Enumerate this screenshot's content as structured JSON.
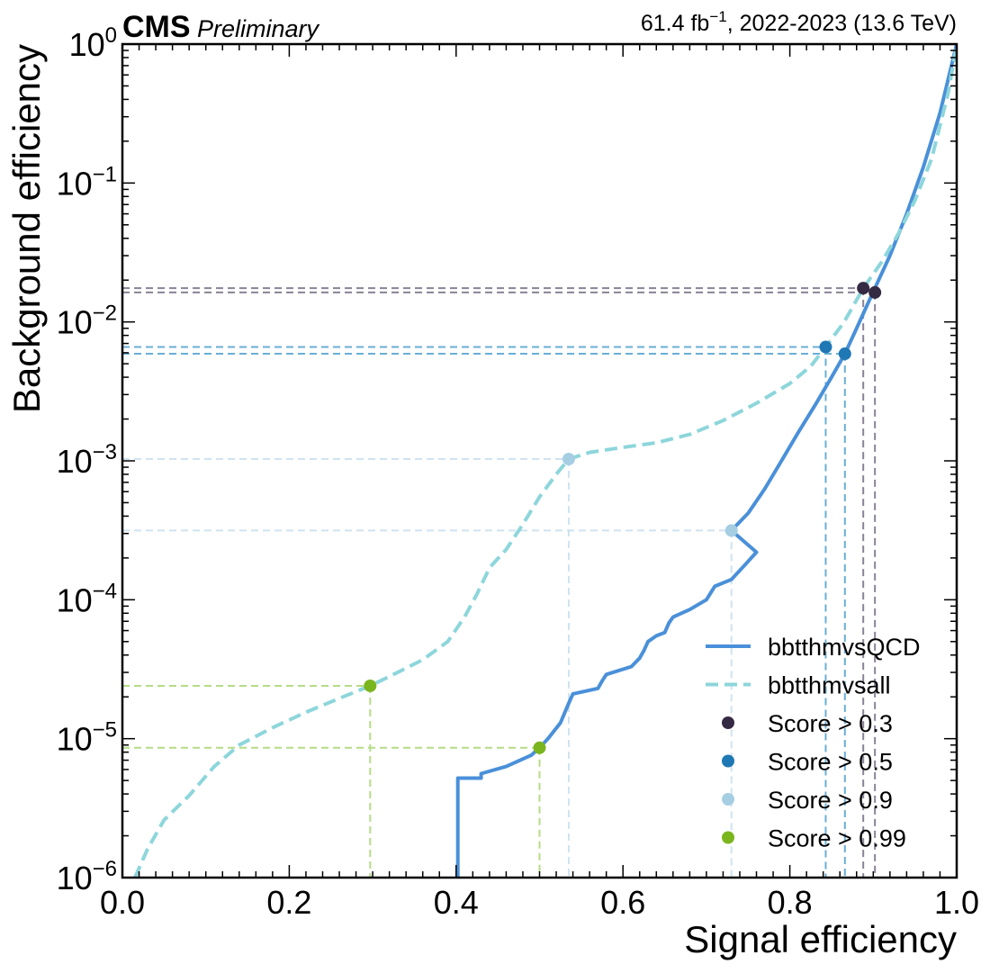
{
  "header": {
    "experiment": "CMS",
    "status": "Preliminary",
    "lumi_text": "61.4 fb",
    "lumi_exp": "−1",
    "lumi_suffix": ", 2022-2023 (13.6 TeV)"
  },
  "chart_data": {
    "type": "line",
    "xlabel": "Signal efficiency",
    "ylabel": "Background efficiency",
    "xlim": [
      0.0,
      1.0
    ],
    "ylim": [
      1e-06,
      1.0
    ],
    "yscale": "log",
    "x_ticks": [
      "0.0",
      "0.2",
      "0.4",
      "0.6",
      "0.8",
      "1.0"
    ],
    "y_ticks": [
      {
        "base": "10",
        "exp": "−6"
      },
      {
        "base": "10",
        "exp": "−5"
      },
      {
        "base": "10",
        "exp": "−4"
      },
      {
        "base": "10",
        "exp": "−3"
      },
      {
        "base": "10",
        "exp": "−2"
      },
      {
        "base": "10",
        "exp": "−1"
      },
      {
        "base": "10",
        "exp": "0"
      }
    ],
    "legend_position": "lower-right",
    "grid": false,
    "series": [
      {
        "name": "bbtthmvsQCD",
        "style": "solid",
        "color": "#4a90d9",
        "points": [
          [
            0.402,
            1e-06
          ],
          [
            0.402,
            5.2e-06
          ],
          [
            0.43,
            5.2e-06
          ],
          [
            0.43,
            5.6e-06
          ],
          [
            0.46,
            6.3e-06
          ],
          [
            0.49,
            7.6e-06
          ],
          [
            0.5,
            8.6e-06
          ],
          [
            0.51,
            1e-05
          ],
          [
            0.525,
            1.3e-05
          ],
          [
            0.535,
            1.8e-05
          ],
          [
            0.54,
            2.1e-05
          ],
          [
            0.57,
            2.3e-05
          ],
          [
            0.575,
            2.6e-05
          ],
          [
            0.58,
            2.9e-05
          ],
          [
            0.61,
            3.3e-05
          ],
          [
            0.62,
            3.8e-05
          ],
          [
            0.625,
            4.3e-05
          ],
          [
            0.63,
            5e-05
          ],
          [
            0.64,
            5.5e-05
          ],
          [
            0.65,
            5.8e-05
          ],
          [
            0.655,
            6.8e-05
          ],
          [
            0.66,
            7.5e-05
          ],
          [
            0.68,
            8.5e-05
          ],
          [
            0.7,
            0.0001
          ],
          [
            0.71,
            0.000125
          ],
          [
            0.73,
            0.00014
          ],
          [
            0.745,
            0.000175
          ],
          [
            0.76,
            0.00022
          ],
          [
            0.73,
            0.000315
          ],
          [
            0.75,
            0.00042
          ],
          [
            0.77,
            0.00063
          ],
          [
            0.79,
            0.001
          ],
          [
            0.81,
            0.0016
          ],
          [
            0.83,
            0.0025
          ],
          [
            0.85,
            0.004
          ],
          [
            0.866,
            0.0059
          ],
          [
            0.88,
            0.009
          ],
          [
            0.9,
            0.0165
          ],
          [
            0.92,
            0.03
          ],
          [
            0.94,
            0.06
          ],
          [
            0.96,
            0.13
          ],
          [
            0.98,
            0.32
          ],
          [
            1.0,
            1.0
          ]
        ]
      },
      {
        "name": "bbtthmvsall",
        "style": "dashed",
        "color": "#8dd6db",
        "points": [
          [
            0.015,
            1e-06
          ],
          [
            0.03,
            1.6e-06
          ],
          [
            0.05,
            2.6e-06
          ],
          [
            0.08,
            3.9e-06
          ],
          [
            0.11,
            6.3e-06
          ],
          [
            0.14,
            9e-06
          ],
          [
            0.18,
            1.2e-05
          ],
          [
            0.22,
            1.55e-05
          ],
          [
            0.26,
            1.95e-05
          ],
          [
            0.297,
            2.4e-05
          ],
          [
            0.33,
            3e-05
          ],
          [
            0.36,
            3.7e-05
          ],
          [
            0.39,
            5e-05
          ],
          [
            0.41,
            7.5e-05
          ],
          [
            0.425,
            0.00011
          ],
          [
            0.44,
            0.00017
          ],
          [
            0.46,
            0.00023
          ],
          [
            0.48,
            0.00035
          ],
          [
            0.5,
            0.00055
          ],
          [
            0.52,
            0.0008
          ],
          [
            0.535,
            0.00103
          ],
          [
            0.56,
            0.00115
          ],
          [
            0.6,
            0.00125
          ],
          [
            0.64,
            0.00135
          ],
          [
            0.68,
            0.00155
          ],
          [
            0.72,
            0.00195
          ],
          [
            0.76,
            0.0026
          ],
          [
            0.8,
            0.0036
          ],
          [
            0.825,
            0.0048
          ],
          [
            0.843,
            0.0066
          ],
          [
            0.865,
            0.01
          ],
          [
            0.888,
            0.0175
          ],
          [
            0.91,
            0.027
          ],
          [
            0.93,
            0.043
          ],
          [
            0.95,
            0.075
          ],
          [
            0.97,
            0.15
          ],
          [
            0.99,
            0.45
          ],
          [
            1.0,
            1.0
          ]
        ]
      }
    ],
    "working_points": [
      {
        "label": "Score > 0.3",
        "color": "#352a44",
        "line_color": "#8a8296",
        "points": [
          [
            0.888,
            0.0175
          ],
          [
            0.902,
            0.0163
          ]
        ]
      },
      {
        "label": "Score > 0.5",
        "color": "#1f78b4",
        "line_color": "#6aaed6",
        "points": [
          [
            0.843,
            0.0066
          ],
          [
            0.866,
            0.0059
          ]
        ]
      },
      {
        "label": "Score > 0.9",
        "color": "#a6cee3",
        "line_color": "#cfe3f0",
        "points": [
          [
            0.535,
            0.00103
          ],
          [
            0.73,
            0.000315
          ]
        ]
      },
      {
        "label": "Score > 0.99",
        "color": "#7ab51d",
        "line_color": "#b5dc86",
        "points": [
          [
            0.297,
            2.4e-05
          ],
          [
            0.5,
            8.6e-06
          ]
        ]
      }
    ]
  }
}
